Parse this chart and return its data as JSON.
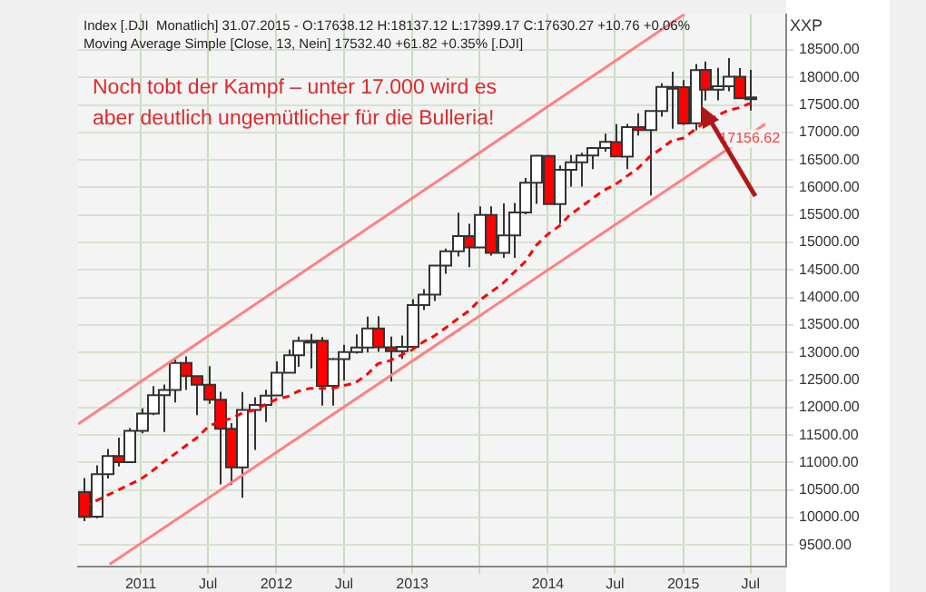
{
  "chart_data": {
    "type": "candlestick",
    "ylabel": "XXP",
    "annotations": [
      "Index [.DJI  Monatlich] 31.07.2015 - O:17638.12 H:18137.12 L:17399.17 C:17630.27 +10.76 +0.06%",
      "Moving Average Simple [Close, 13, Nein] 17532.40 +61.82 +0.35% [.DJI]",
      "Noch tobt der Kampf – unter 17.000 wird es aber deutlich ungemütlicher für die Bulleria!",
      {
        "text": "17156.62",
        "x": "2015-08-10",
        "y": 17156.62
      }
    ],
    "xlim": [
      "2010-07-16",
      "2015-10-05"
    ],
    "xticks": [
      {
        "value": "2011-01",
        "label": "2011"
      },
      {
        "value": "2011-07",
        "label": "Jul"
      },
      {
        "value": "2012-01",
        "label": "2012"
      },
      {
        "value": "2012-07",
        "label": "Jul"
      },
      {
        "value": "2013-01",
        "label": "2013"
      },
      {
        "value": "2013-07",
        "label": null
      },
      {
        "value": "2014-01",
        "label": "2014"
      },
      {
        "value": "2014-07",
        "label": "Jul"
      },
      {
        "value": "2015-01",
        "label": "2015"
      },
      {
        "value": "2015-07",
        "label": "Jul"
      }
    ],
    "ylim": [
      9110,
      19150
    ],
    "yticks": [
      {
        "value": 9500,
        "label": "9500.00"
      },
      {
        "value": 10000,
        "label": "10000.00"
      },
      {
        "value": 10500,
        "label": "10500.00"
      },
      {
        "value": 11000,
        "label": "11000.00"
      },
      {
        "value": 11500,
        "label": "11500.00"
      },
      {
        "value": 12000,
        "label": "12000.00"
      },
      {
        "value": 12500,
        "label": "12500.00"
      },
      {
        "value": 13000,
        "label": "13000.00"
      },
      {
        "value": 13500,
        "label": "13500.00"
      },
      {
        "value": 14000,
        "label": "14000.00"
      },
      {
        "value": 14500,
        "label": "14500.00"
      },
      {
        "value": 15000,
        "label": "15000.00"
      },
      {
        "value": 15500,
        "label": "15500.00"
      },
      {
        "value": 16000,
        "label": "16000.00"
      },
      {
        "value": 16500,
        "label": "16500.00"
      },
      {
        "value": 17000,
        "label": "17000.00"
      },
      {
        "value": 17500,
        "label": "17500.00"
      },
      {
        "value": 18000,
        "label": "18000.00"
      },
      {
        "value": 18500,
        "label": "18500.00"
      }
    ],
    "grid": true,
    "series": [
      {
        "colors": [
          "#ff0000",
          "#ffffff",
          "#ffffff",
          "#ff0000",
          "#ffffff",
          "#ffffff",
          "#ffffff",
          "#ffffff",
          "#ffffff",
          "#ff0000",
          "#ff0000",
          "#ff0000",
          "#ff0000",
          "#ff0000",
          "#ffffff",
          "#ffffff",
          "#ffffff",
          "#ffffff",
          "#ffffff",
          "#ffffff",
          "#ffffff",
          "#ff0000",
          "#ffffff",
          "#ffffff",
          "#ffffff",
          "#ffffff",
          "#ff0000",
          "#ff0000",
          "#ffffff",
          "#ffffff",
          "#ffffff",
          "#ffffff",
          "#ffffff",
          "#ffffff",
          "#ff0000",
          "#ffffff",
          "#ff0000",
          "#ffffff",
          "#ffffff",
          "#ffffff",
          "#ffffff",
          "#ff0000",
          "#ffffff",
          "#ffffff",
          "#ffffff",
          "#ffffff",
          "#ffffff",
          "#ff0000",
          "#ffffff",
          "#ff0000",
          "#ffffff",
          "#ffffff",
          "#ff0000",
          "#ff0000",
          "#ffffff",
          "#ff0000",
          "#ffffff",
          "#ffffff",
          "#ff0000",
          "#ff0000"
        ],
        "x": [
          "2010-08",
          "2010-09",
          "2010-10",
          "2010-11",
          "2010-12",
          "2011-01",
          "2011-02",
          "2011-03",
          "2011-04",
          "2011-05",
          "2011-06",
          "2011-07",
          "2011-08",
          "2011-09",
          "2011-10",
          "2011-11",
          "2011-12",
          "2012-01",
          "2012-02",
          "2012-03",
          "2012-04",
          "2012-05",
          "2012-06",
          "2012-07",
          "2012-08",
          "2012-09",
          "2012-10",
          "2012-11",
          "2012-12",
          "2013-01",
          "2013-02",
          "2013-03",
          "2013-04",
          "2013-05",
          "2013-06",
          "2013-07",
          "2013-08",
          "2013-09",
          "2013-10",
          "2013-11",
          "2013-12",
          "2014-01",
          "2014-02",
          "2014-03",
          "2014-04",
          "2014-05",
          "2014-06",
          "2014-07",
          "2014-08",
          "2014-09",
          "2014-10",
          "2014-11",
          "2014-12",
          "2015-01",
          "2015-02",
          "2015-03",
          "2015-04",
          "2015-05",
          "2015-06",
          "2015-07"
        ],
        "ohlc": [
          [
            10465,
            10720,
            9937,
            10014
          ],
          [
            10016,
            10948,
            9990,
            10788
          ],
          [
            10789,
            11247,
            10712,
            11118
          ],
          [
            11120,
            11452,
            10929,
            11006
          ],
          [
            11007,
            11625,
            10998,
            11578
          ],
          [
            11577,
            11984,
            11531,
            11892
          ],
          [
            11892,
            12391,
            11862,
            12226
          ],
          [
            12226,
            12419,
            11555,
            12320
          ],
          [
            12321,
            12876,
            12093,
            12811
          ],
          [
            12810,
            12929,
            12321,
            12570
          ],
          [
            12570,
            12570,
            11862,
            12414
          ],
          [
            12414,
            12753,
            12070,
            12143
          ],
          [
            12144,
            12285,
            10604,
            11614
          ],
          [
            11613,
            11717,
            10597,
            10913
          ],
          [
            10912,
            12284,
            10362,
            11955
          ],
          [
            11955,
            12188,
            11232,
            12046
          ],
          [
            12046,
            12325,
            11736,
            12218
          ],
          [
            12221,
            12841,
            12217,
            12633
          ],
          [
            12632,
            13055,
            12630,
            12952
          ],
          [
            12952,
            13289,
            12742,
            13212
          ],
          [
            13212,
            13338,
            12710,
            13214
          ],
          [
            13214,
            13280,
            12036,
            12393
          ],
          [
            12392,
            12898,
            12035,
            12880
          ],
          [
            12880,
            13139,
            12492,
            13009
          ],
          [
            13009,
            13331,
            12978,
            13091
          ],
          [
            13090,
            13653,
            13000,
            13437
          ],
          [
            13437,
            13661,
            13011,
            13096
          ],
          [
            13094,
            13290,
            12471,
            13026
          ],
          [
            13027,
            13311,
            12883,
            13104
          ],
          [
            13104,
            13970,
            13104,
            13861
          ],
          [
            13861,
            14150,
            13770,
            14054
          ],
          [
            14054,
            14585,
            13937,
            14579
          ],
          [
            14580,
            14888,
            14434,
            14840
          ],
          [
            14840,
            15542,
            14746,
            15116
          ],
          [
            15116,
            15340,
            14552,
            14910
          ],
          [
            14911,
            15658,
            14911,
            15500
          ],
          [
            15500,
            15658,
            14761,
            14810
          ],
          [
            14810,
            15710,
            14720,
            15130
          ],
          [
            15130,
            15721,
            14720,
            15546
          ],
          [
            15546,
            16175,
            15513,
            16086
          ],
          [
            16086,
            16588,
            15703,
            16577
          ],
          [
            16572,
            16588,
            15698,
            15699
          ],
          [
            15698,
            16398,
            15340,
            16322
          ],
          [
            16321,
            16588,
            16016,
            16458
          ],
          [
            16458,
            16632,
            16015,
            16581
          ],
          [
            16581,
            16736,
            16334,
            16717
          ],
          [
            16716,
            16978,
            16653,
            16827
          ],
          [
            16826,
            17152,
            16563,
            16563
          ],
          [
            16561,
            17154,
            16334,
            17098
          ],
          [
            17099,
            17350,
            16945,
            17043
          ],
          [
            17042,
            17395,
            15855,
            17391
          ],
          [
            17390,
            17895,
            17285,
            17828
          ],
          [
            17827,
            18103,
            17068,
            17823
          ],
          [
            17823,
            17951,
            17136,
            17165
          ],
          [
            17169,
            18244,
            17038,
            18133
          ],
          [
            18135,
            18289,
            17579,
            17776
          ],
          [
            17776,
            18175,
            17585,
            17841
          ],
          [
            17840,
            18352,
            17748,
            18011
          ],
          [
            18012,
            18168,
            17611,
            17620
          ],
          [
            17638.12,
            18137.12,
            17399.17,
            17630.27
          ]
        ]
      },
      {
        "type": "line",
        "color": "#ff0000",
        "line_style": "dashed",
        "x": [
          "2010-08",
          "2010-09",
          "2010-10",
          "2010-11",
          "2010-12",
          "2011-01",
          "2011-02",
          "2011-03",
          "2011-04",
          "2011-05",
          "2011-06",
          "2011-07",
          "2011-08",
          "2011-09",
          "2011-10",
          "2011-11",
          "2011-12",
          "2012-01",
          "2012-02",
          "2012-03",
          "2012-04",
          "2012-05",
          "2012-06",
          "2012-07",
          "2012-08",
          "2012-09",
          "2012-10",
          "2012-11",
          "2012-12",
          "2013-01",
          "2013-02",
          "2013-03",
          "2013-04",
          "2013-05",
          "2013-06",
          "2013-07",
          "2013-08",
          "2013-09",
          "2013-10",
          "2013-11",
          "2013-12",
          "2014-01",
          "2014-02",
          "2014-03",
          "2014-04",
          "2014-05",
          "2014-06",
          "2014-07",
          "2014-08",
          "2014-09",
          "2014-10",
          "2014-11",
          "2014-12",
          "2015-01",
          "2015-02",
          "2015-03",
          "2015-04",
          "2015-05",
          "2015-06",
          "2015-07"
        ],
        "values": [
          10200,
          10300,
          10400,
          10500,
          10600,
          10700,
          10850,
          11000,
          11150,
          11300,
          11450,
          11650,
          11750,
          11800,
          11900,
          11950,
          12050,
          12150,
          12200,
          12300,
          12350,
          12350,
          12350,
          12400,
          12450,
          12600,
          12800,
          12850,
          12950,
          13050,
          13200,
          13300,
          13450,
          13600,
          13750,
          13950,
          14100,
          14250,
          14450,
          14650,
          14950,
          15150,
          15300,
          15500,
          15650,
          15800,
          15950,
          16050,
          16200,
          16350,
          16550,
          16700,
          16850,
          16900,
          17050,
          17200,
          17300,
          17400,
          17450,
          17532.4
        ]
      },
      {
        "type": "line",
        "color": "#ff8080",
        "line_style": "solid",
        "x": [
          "2010-07-16",
          "2015-01-04"
        ],
        "values": [
          11700,
          19150
        ]
      },
      {
        "type": "line",
        "color": "#ff8080",
        "line_style": "solid",
        "x": [
          "2010-10-09",
          "2015-08-10"
        ],
        "values": [
          9150,
          17156.62
        ]
      }
    ]
  }
}
